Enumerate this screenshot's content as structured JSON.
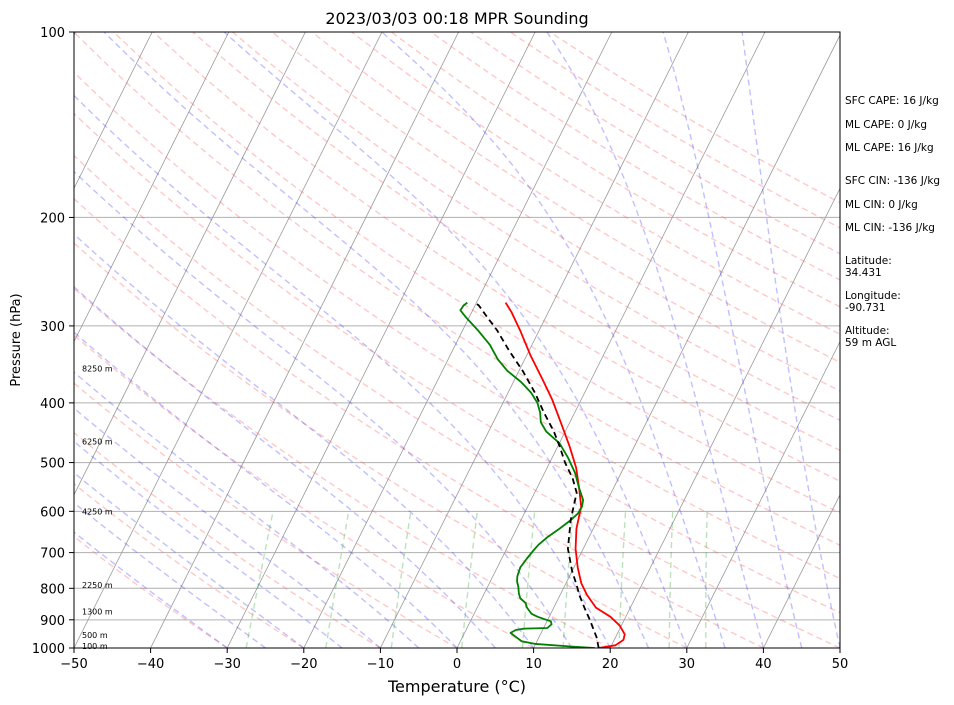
{
  "chart_data": {
    "type": "skew-t",
    "title": "2023/03/03 00:18 MPR Sounding",
    "xlabel": "Temperature (°C)",
    "ylabel": "Pressure (hPa)",
    "xlim": [
      -50,
      50
    ],
    "ylim": [
      1000,
      100
    ],
    "y_scale": "log",
    "x_ticks": [
      -50,
      -40,
      -30,
      -20,
      -10,
      0,
      10,
      20,
      30,
      40,
      50
    ],
    "y_ticks": [
      100,
      200,
      300,
      400,
      500,
      600,
      700,
      800,
      900,
      1000
    ],
    "height_labels": [
      {
        "text": "8250 m",
        "p": 352
      },
      {
        "text": "6250 m",
        "p": 462
      },
      {
        "text": "4250 m",
        "p": 600
      },
      {
        "text": "2250 m",
        "p": 790
      },
      {
        "text": "1300 m",
        "p": 872
      },
      {
        "text": "500 m",
        "p": 952
      },
      {
        "text": "100 m",
        "p": 993
      }
    ],
    "series": [
      {
        "color": "#ff0000",
        "points": [
          [
            18.5,
            1000
          ],
          [
            20.5,
            990
          ],
          [
            21.2,
            970
          ],
          [
            21.0,
            950
          ],
          [
            19.8,
            920
          ],
          [
            18.0,
            890
          ],
          [
            15.5,
            860
          ],
          [
            13.5,
            820
          ],
          [
            12.0,
            785
          ],
          [
            10.5,
            740
          ],
          [
            9.0,
            690
          ],
          [
            7.8,
            640
          ],
          [
            7.0,
            590
          ],
          [
            5.5,
            550
          ],
          [
            3.8,
            510
          ],
          [
            1.5,
            470
          ],
          [
            -1.2,
            430
          ],
          [
            -3.8,
            395
          ],
          [
            -6.5,
            365
          ],
          [
            -9.5,
            335
          ],
          [
            -12.5,
            305
          ],
          [
            -14.8,
            285
          ],
          [
            -16.2,
            275
          ]
        ]
      },
      {
        "color": "#008000",
        "points": [
          [
            18.0,
            1000
          ],
          [
            15.0,
            995
          ],
          [
            10.0,
            985
          ],
          [
            8.0,
            975
          ],
          [
            7.0,
            960
          ],
          [
            6.0,
            945
          ],
          [
            6.5,
            935
          ],
          [
            7.5,
            930
          ],
          [
            10.5,
            928
          ],
          [
            10.8,
            915
          ],
          [
            10.5,
            905
          ],
          [
            8.5,
            890
          ],
          [
            7.5,
            880
          ],
          [
            7.0,
            870
          ],
          [
            6.5,
            860
          ],
          [
            6.0,
            845
          ],
          [
            5.0,
            830
          ],
          [
            4.5,
            815
          ],
          [
            4.0,
            795
          ],
          [
            3.5,
            780
          ],
          [
            3.2,
            765
          ],
          [
            3.0,
            740
          ],
          [
            3.3,
            715
          ],
          [
            3.6,
            695
          ],
          [
            3.9,
            680
          ],
          [
            4.6,
            660
          ],
          [
            5.6,
            640
          ],
          [
            6.5,
            620
          ],
          [
            7.0,
            605
          ],
          [
            7.1,
            590
          ],
          [
            6.8,
            575
          ],
          [
            5.5,
            550
          ],
          [
            4.0,
            520
          ],
          [
            2.0,
            490
          ],
          [
            0.0,
            465
          ],
          [
            -2.5,
            445
          ],
          [
            -3.8,
            430
          ],
          [
            -4.5,
            415
          ],
          [
            -5.5,
            400
          ],
          [
            -7.0,
            385
          ],
          [
            -9.0,
            370
          ],
          [
            -11.5,
            355
          ],
          [
            -13.5,
            340
          ],
          [
            -15.5,
            322
          ],
          [
            -18.0,
            305
          ],
          [
            -20.5,
            290
          ],
          [
            -21.6,
            283
          ],
          [
            -21.5,
            278
          ],
          [
            -21.2,
            275
          ]
        ]
      },
      {
        "color": "#000000",
        "dashed": true,
        "points": [
          [
            18.5,
            1000
          ],
          [
            17.5,
            960
          ],
          [
            15.5,
            900
          ],
          [
            14.0,
            860
          ],
          [
            12.5,
            820
          ],
          [
            11.5,
            790
          ],
          [
            10.0,
            750
          ],
          [
            8.0,
            690
          ],
          [
            6.5,
            620
          ],
          [
            6.0,
            590
          ],
          [
            5.5,
            560
          ],
          [
            4.0,
            530
          ],
          [
            2.0,
            500
          ],
          [
            0.2,
            470
          ],
          [
            -1.5,
            445
          ],
          [
            -4.0,
            415
          ],
          [
            -6.5,
            385
          ],
          [
            -9.5,
            355
          ],
          [
            -12.5,
            330
          ],
          [
            -15.5,
            305
          ],
          [
            -18.0,
            288
          ],
          [
            -19.5,
            278
          ],
          [
            -20.2,
            275
          ]
        ]
      }
    ]
  },
  "side_info": {
    "sfc_cape": "SFC CAPE: 16 J/kg",
    "ml_cape_1": "ML CAPE: 0 J/kg",
    "ml_cape_2": "ML CAPE: 16 J/kg",
    "sfc_cin": "SFC CIN: -136 J/kg",
    "ml_cin_1": "ML CIN: 0 J/kg",
    "ml_cin_2": "ML CIN: -136 J/kg",
    "latitude": "Latitude:\n34.431",
    "longitude": "Longitude:\n-90.731",
    "altitude": "Altitude:\n59 m AGL"
  }
}
